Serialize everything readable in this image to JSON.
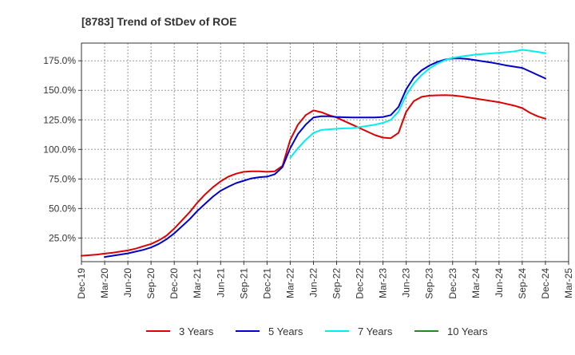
{
  "chart_data": {
    "type": "line",
    "title": "[8783]  Trend of StDev of ROE",
    "xlabel": "",
    "ylabel": "",
    "ylim": [
      5,
      190
    ],
    "grid": true,
    "legend_position": "bottom",
    "x_ticks": [
      "Dec-19",
      "Mar-20",
      "Jun-20",
      "Sep-20",
      "Dec-20",
      "Mar-21",
      "Jun-21",
      "Sep-21",
      "Dec-21",
      "Mar-22",
      "Jun-22",
      "Sep-22",
      "Dec-22",
      "Mar-23",
      "Jun-23",
      "Sep-23",
      "Dec-23",
      "Mar-24",
      "Jun-24",
      "Sep-24",
      "Dec-24",
      "Mar-25"
    ],
    "y_ticks": [
      {
        "value": 25,
        "label": "25.0%"
      },
      {
        "value": 50,
        "label": "50.0%"
      },
      {
        "value": 75,
        "label": "75.0%"
      },
      {
        "value": 100,
        "label": "100.0%"
      },
      {
        "value": 125,
        "label": "125.0%"
      },
      {
        "value": 150,
        "label": "150.0%"
      },
      {
        "value": 175,
        "label": "175.0%"
      }
    ],
    "series": [
      {
        "name": "3 Years",
        "color": "#dd0000",
        "points": [
          [
            "Dec-19",
            10
          ],
          [
            "Jan-20",
            10.5
          ],
          [
            "Feb-20",
            11
          ],
          [
            "Mar-20",
            11.8
          ],
          [
            "Apr-20",
            12.5
          ],
          [
            "May-20",
            13.5
          ],
          [
            "Jun-20",
            14.5
          ],
          [
            "Jul-20",
            16
          ],
          [
            "Aug-20",
            18
          ],
          [
            "Sep-20",
            20
          ],
          [
            "Oct-20",
            23
          ],
          [
            "Nov-20",
            27
          ],
          [
            "Dec-20",
            33
          ],
          [
            "Jan-21",
            40
          ],
          [
            "Feb-21",
            47
          ],
          [
            "Mar-21",
            55
          ],
          [
            "Apr-21",
            62
          ],
          [
            "May-21",
            68
          ],
          [
            "Jun-21",
            73
          ],
          [
            "Jul-21",
            77
          ],
          [
            "Aug-21",
            79.5
          ],
          [
            "Sep-21",
            81
          ],
          [
            "Oct-21",
            81.5
          ],
          [
            "Nov-21",
            81.5
          ],
          [
            "Dec-21",
            81
          ],
          [
            "Jan-22",
            81.5
          ],
          [
            "Feb-22",
            86
          ],
          [
            "Mar-22",
            108
          ],
          [
            "Apr-22",
            121
          ],
          [
            "May-22",
            129
          ],
          [
            "Jun-22",
            133
          ],
          [
            "Jul-22",
            131.5
          ],
          [
            "Aug-22",
            129
          ],
          [
            "Sep-22",
            127
          ],
          [
            "Oct-22",
            124
          ],
          [
            "Nov-22",
            121
          ],
          [
            "Dec-22",
            118
          ],
          [
            "Jan-23",
            115
          ],
          [
            "Feb-23",
            112
          ],
          [
            "Mar-23",
            110
          ],
          [
            "Apr-23",
            109.5
          ],
          [
            "May-23",
            114
          ],
          [
            "Jun-23",
            132
          ],
          [
            "Jul-23",
            141
          ],
          [
            "Aug-23",
            144.5
          ],
          [
            "Sep-23",
            145.5
          ],
          [
            "Oct-23",
            145.8
          ],
          [
            "Nov-23",
            146
          ],
          [
            "Dec-23",
            145.7
          ],
          [
            "Jan-24",
            145
          ],
          [
            "Feb-24",
            144
          ],
          [
            "Mar-24",
            143
          ],
          [
            "Apr-24",
            142
          ],
          [
            "May-24",
            141
          ],
          [
            "Jun-24",
            140
          ],
          [
            "Jul-24",
            138.5
          ],
          [
            "Aug-24",
            137
          ],
          [
            "Sep-24",
            135
          ],
          [
            "Oct-24",
            131
          ],
          [
            "Nov-24",
            128
          ],
          [
            "Dec-24",
            126
          ]
        ]
      },
      {
        "name": "5 Years",
        "color": "#0000cc",
        "points": [
          [
            "Mar-20",
            9
          ],
          [
            "Apr-20",
            10
          ],
          [
            "May-20",
            11
          ],
          [
            "Jun-20",
            12
          ],
          [
            "Jul-20",
            13.5
          ],
          [
            "Aug-20",
            15
          ],
          [
            "Sep-20",
            17
          ],
          [
            "Oct-20",
            20
          ],
          [
            "Nov-20",
            24
          ],
          [
            "Dec-20",
            29
          ],
          [
            "Jan-21",
            35
          ],
          [
            "Feb-21",
            41
          ],
          [
            "Mar-21",
            48
          ],
          [
            "Apr-21",
            54
          ],
          [
            "May-21",
            60
          ],
          [
            "Jun-21",
            65
          ],
          [
            "Jul-21",
            68.5
          ],
          [
            "Aug-21",
            71.5
          ],
          [
            "Sep-21",
            73.5
          ],
          [
            "Oct-21",
            75.5
          ],
          [
            "Nov-21",
            76.5
          ],
          [
            "Dec-21",
            77
          ],
          [
            "Jan-22",
            79
          ],
          [
            "Feb-22",
            85
          ],
          [
            "Mar-22",
            101
          ],
          [
            "Apr-22",
            113
          ],
          [
            "May-22",
            121
          ],
          [
            "Jun-22",
            127
          ],
          [
            "Jul-22",
            128
          ],
          [
            "Aug-22",
            128
          ],
          [
            "Sep-22",
            127.5
          ],
          [
            "Oct-22",
            127.2
          ],
          [
            "Nov-22",
            127
          ],
          [
            "Dec-22",
            127
          ],
          [
            "Jan-23",
            127
          ],
          [
            "Feb-23",
            127
          ],
          [
            "Mar-23",
            127.5
          ],
          [
            "Apr-23",
            129
          ],
          [
            "May-23",
            136
          ],
          [
            "Jun-23",
            151
          ],
          [
            "Jul-23",
            161
          ],
          [
            "Aug-23",
            167
          ],
          [
            "Sep-23",
            171
          ],
          [
            "Oct-23",
            174
          ],
          [
            "Nov-23",
            176
          ],
          [
            "Dec-23",
            177
          ],
          [
            "Jan-24",
            177
          ],
          [
            "Feb-24",
            176.5
          ],
          [
            "Mar-24",
            175.5
          ],
          [
            "Apr-24",
            174.5
          ],
          [
            "May-24",
            173.5
          ],
          [
            "Jun-24",
            172.3
          ],
          [
            "Jul-24",
            171
          ],
          [
            "Aug-24",
            170
          ],
          [
            "Sep-24",
            169
          ],
          [
            "Oct-24",
            166
          ],
          [
            "Nov-24",
            163
          ],
          [
            "Dec-24",
            160
          ]
        ]
      },
      {
        "name": "7 Years",
        "color": "#00eeee",
        "points": [
          [
            "Mar-22",
            93
          ],
          [
            "Apr-22",
            101
          ],
          [
            "May-22",
            108
          ],
          [
            "Jun-22",
            114
          ],
          [
            "Jul-22",
            116.5
          ],
          [
            "Aug-22",
            117
          ],
          [
            "Sep-22",
            117.5
          ],
          [
            "Oct-22",
            117.8
          ],
          [
            "Nov-22",
            118
          ],
          [
            "Dec-22",
            119
          ],
          [
            "Jan-23",
            120
          ],
          [
            "Feb-23",
            121
          ],
          [
            "Mar-23",
            122.5
          ],
          [
            "Apr-23",
            125
          ],
          [
            "May-23",
            132
          ],
          [
            "Jun-23",
            146
          ],
          [
            "Jul-23",
            156
          ],
          [
            "Aug-23",
            163
          ],
          [
            "Sep-23",
            168.5
          ],
          [
            "Oct-23",
            172.5
          ],
          [
            "Nov-23",
            175.5
          ],
          [
            "Dec-23",
            177.5
          ],
          [
            "Jan-24",
            178.5
          ],
          [
            "Feb-24",
            179.5
          ],
          [
            "Mar-24",
            180.3
          ],
          [
            "Apr-24",
            180.8
          ],
          [
            "May-24",
            181.3
          ],
          [
            "Jun-24",
            181.8
          ],
          [
            "Jul-24",
            182.3
          ],
          [
            "Aug-24",
            183
          ],
          [
            "Sep-24",
            184.3
          ],
          [
            "Oct-24",
            183.5
          ],
          [
            "Nov-24",
            182.5
          ],
          [
            "Dec-24",
            181.5
          ]
        ]
      },
      {
        "name": "10 Years",
        "color": "#228b22",
        "points": []
      }
    ]
  }
}
